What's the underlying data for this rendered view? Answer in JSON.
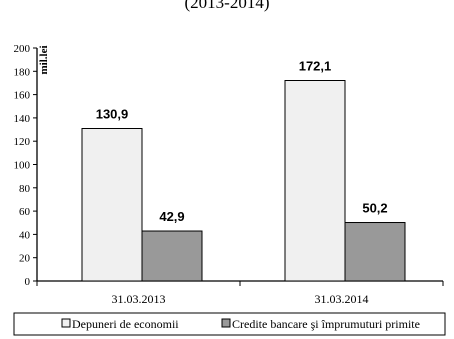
{
  "chart_data": {
    "type": "bar",
    "title": "(2013-2014)",
    "ylabel": "mil.lei",
    "xlabel": "",
    "ylim": [
      0,
      200
    ],
    "yticks": [
      0,
      20,
      40,
      60,
      80,
      100,
      120,
      140,
      160,
      180,
      200
    ],
    "categories": [
      "31.03.2013",
      "31.03.2014"
    ],
    "series": [
      {
        "name": "Depuneri de economii",
        "values": [
          130.9,
          172.1
        ],
        "labels": [
          "130,9",
          "172,1"
        ],
        "color": "#f0f0f0"
      },
      {
        "name": "Credite bancare şi împrumuturi primite",
        "values": [
          42.9,
          50.2
        ],
        "labels": [
          "42,9",
          "50,2"
        ],
        "color": "#999999"
      }
    ],
    "grid": false,
    "legend": "bottom"
  }
}
